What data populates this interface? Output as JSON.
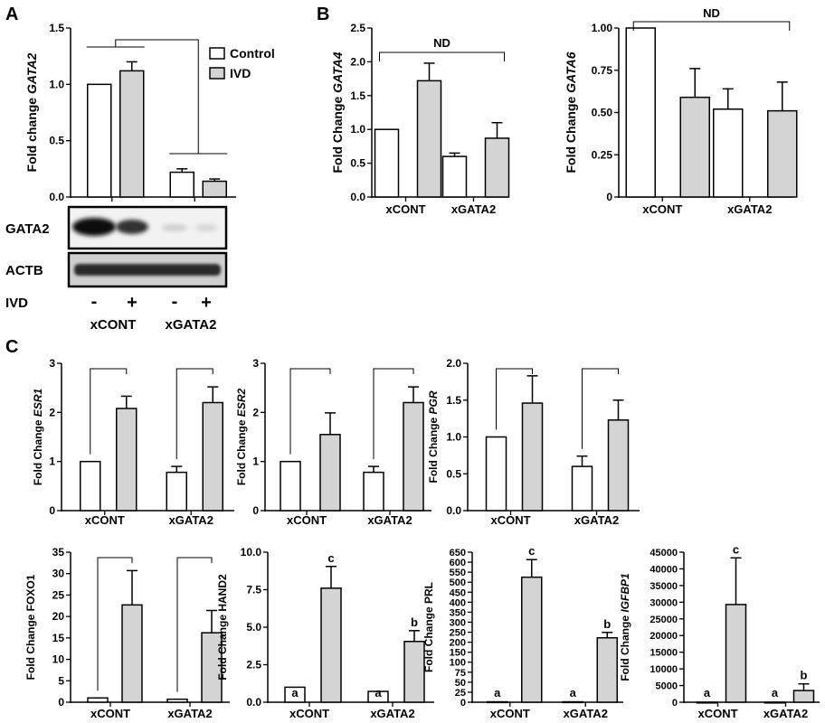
{
  "panel_labels": [
    "A",
    "B",
    "C"
  ],
  "legend": {
    "control": "Control",
    "ivd": "IVD"
  },
  "blot": {
    "gata2_label": "GATA2",
    "actb_label": "ACTB",
    "ivd_label": "IVD",
    "ivd_signs": [
      "-",
      "+",
      "-",
      "+"
    ],
    "groups": [
      "xCONT",
      "xGATA2"
    ]
  },
  "colors": {
    "control": "#ffffff",
    "ivd": "#d4d4d4",
    "stroke": "#000000"
  },
  "chart_data": [
    {
      "id": "gata2",
      "type": "bar",
      "ylabel_pre": "Fold change ",
      "ylabel_gene": "GATA2",
      "categories": [
        "",
        ""
      ],
      "ylim": [
        0,
        1.5
      ],
      "yticks": [
        "0.0",
        "0.5",
        "1.0",
        "1.5"
      ],
      "series": [
        {
          "name": "Control",
          "values": [
            1.0,
            0.22
          ],
          "err": [
            0,
            0.03
          ]
        },
        {
          "name": "IVD",
          "values": [
            1.12,
            0.14
          ],
          "err": [
            0.08,
            0.02
          ]
        }
      ]
    },
    {
      "id": "gata4",
      "type": "bar",
      "ylabel_pre": "Fold  Change ",
      "ylabel_gene": "GATA4",
      "categories": [
        "xCONT",
        "xGATA2"
      ],
      "ylim": [
        0,
        2.5
      ],
      "yticks": [
        "0.0",
        "0.5",
        "1.0",
        "1.5",
        "2.0",
        "2.5"
      ],
      "annotation": "ND",
      "series": [
        {
          "name": "Control",
          "values": [
            1.0,
            0.6
          ],
          "err": [
            0,
            0.05
          ]
        },
        {
          "name": "IVD",
          "values": [
            1.72,
            0.87
          ],
          "err": [
            0.26,
            0.23
          ]
        }
      ]
    },
    {
      "id": "gata6",
      "type": "bar",
      "ylabel_pre": "Fold  Change ",
      "ylabel_gene": "GATA6",
      "categories": [
        "xCONT",
        "xGATA2"
      ],
      "ylim": [
        0,
        1.0
      ],
      "yticks": [
        "0",
        "0.25",
        "0.50",
        "0.75",
        "1.00"
      ],
      "annotation": "ND",
      "series": [
        {
          "name": "Control",
          "values": [
            1.0,
            0.52
          ],
          "err": [
            0,
            0.12
          ]
        },
        {
          "name": "IVD",
          "values": [
            0.59,
            0.51
          ],
          "err": [
            0.17,
            0.17
          ]
        }
      ]
    },
    {
      "id": "esr1",
      "type": "bar",
      "ylabel_pre": "Fold  Change ",
      "ylabel_gene": "ESR1",
      "categories": [
        "xCONT",
        "xGATA2"
      ],
      "ylim": [
        0,
        3
      ],
      "yticks": [
        "0",
        "1",
        "2",
        "3"
      ],
      "series": [
        {
          "name": "Control",
          "values": [
            1.0,
            0.78
          ],
          "err": [
            0,
            0.12
          ]
        },
        {
          "name": "IVD",
          "values": [
            2.08,
            2.2
          ],
          "err": [
            0.25,
            0.32
          ]
        }
      ]
    },
    {
      "id": "esr2",
      "type": "bar",
      "ylabel_pre": "Fold  Change ",
      "ylabel_gene": "ESR2",
      "categories": [
        "xCONT",
        "xGATA2"
      ],
      "ylim": [
        0,
        3
      ],
      "yticks": [
        "0",
        "1",
        "2",
        "3"
      ],
      "series": [
        {
          "name": "Control",
          "values": [
            1.0,
            0.78
          ],
          "err": [
            0,
            0.12
          ]
        },
        {
          "name": "IVD",
          "values": [
            1.55,
            2.2
          ],
          "err": [
            0.44,
            0.32
          ]
        }
      ]
    },
    {
      "id": "pgr",
      "type": "bar",
      "ylabel_pre": "Fold  Change ",
      "ylabel_gene": "PGR",
      "categories": [
        "xCONT",
        "xGATA2"
      ],
      "ylim": [
        0,
        2.0
      ],
      "yticks": [
        "0.0",
        "0.5",
        "1.0",
        "1.5",
        "2.0"
      ],
      "series": [
        {
          "name": "Control",
          "values": [
            1.0,
            0.6
          ],
          "err": [
            0,
            0.14
          ]
        },
        {
          "name": "IVD",
          "values": [
            1.46,
            1.23
          ],
          "err": [
            0.37,
            0.27
          ]
        }
      ]
    },
    {
      "id": "foxo1",
      "type": "bar",
      "ylabel_pre": "Fold  Change FOXO1",
      "ylabel_gene": "",
      "categories": [
        "xCONT",
        "xGATA2"
      ],
      "ylim": [
        0,
        35
      ],
      "yticks": [
        "0",
        "5",
        "10",
        "15",
        "20",
        "25",
        "30",
        "35"
      ],
      "series": [
        {
          "name": "Control",
          "values": [
            1.0,
            0.7
          ],
          "err": [
            0,
            0
          ]
        },
        {
          "name": "IVD",
          "values": [
            22.7,
            16.2
          ],
          "err": [
            8.0,
            5.2
          ]
        }
      ]
    },
    {
      "id": "hand2",
      "type": "bar",
      "ylabel_pre": "Fold  Change HAND2",
      "ylabel_gene": "",
      "categories": [
        "xCONT",
        "xGATA2"
      ],
      "ylim": [
        0,
        10.0
      ],
      "yticks": [
        "0.0",
        "2.5",
        "5.0",
        "7.5",
        "10.0"
      ],
      "series": [
        {
          "name": "Control",
          "values": [
            1.0,
            0.72
          ],
          "err": [
            0,
            0
          ],
          "labels": [
            "a",
            "a"
          ]
        },
        {
          "name": "IVD",
          "values": [
            7.6,
            4.05
          ],
          "err": [
            1.45,
            0.72
          ],
          "labels": [
            "c",
            "b"
          ]
        }
      ]
    },
    {
      "id": "prl",
      "type": "bar",
      "ylabel_pre": "Fold  Change PRL",
      "ylabel_gene": "",
      "categories": [
        "xCONT",
        "xGATA2"
      ],
      "ylim": [
        0,
        650
      ],
      "yticks": [
        "0",
        "25",
        "50",
        "75",
        "100",
        "150",
        "200",
        "250",
        "300",
        "350",
        "400",
        "450",
        "500",
        "550",
        "600",
        "650"
      ],
      "series": [
        {
          "name": "Control",
          "values": [
            1.0,
            1.0
          ],
          "err": [
            0,
            0
          ],
          "labels": [
            "a",
            "a"
          ]
        },
        {
          "name": "IVD",
          "values": [
            525,
            222
          ],
          "err": [
            88,
            27
          ],
          "labels": [
            "c",
            "b"
          ]
        }
      ]
    },
    {
      "id": "igfbp1",
      "type": "bar",
      "ylabel_pre": "Fold  Change ",
      "ylabel_gene": "IGFBP1",
      "categories": [
        "xCONT",
        "xGATA2"
      ],
      "ylim": [
        0,
        45000
      ],
      "yticks": [
        "0",
        "5000",
        "10000",
        "15000",
        "20000",
        "25000",
        "30000",
        "35000",
        "40000",
        "45000"
      ],
      "series": [
        {
          "name": "Control",
          "values": [
            1.0,
            1.0
          ],
          "err": [
            0,
            0
          ],
          "labels": [
            "a",
            "a"
          ]
        },
        {
          "name": "IVD",
          "values": [
            29300,
            3500
          ],
          "err": [
            14000,
            2000
          ],
          "labels": [
            "c",
            "b"
          ]
        }
      ]
    }
  ]
}
